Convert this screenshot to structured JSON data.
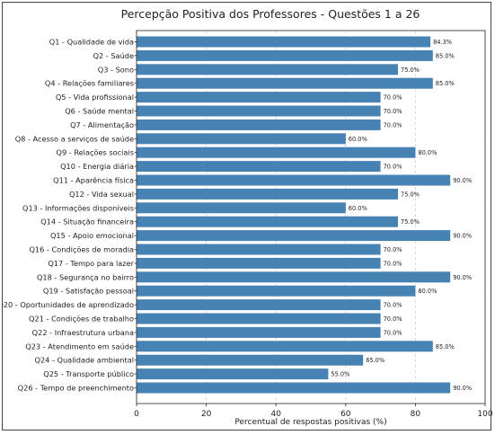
{
  "chart_data": {
    "type": "bar",
    "orientation": "horizontal",
    "title": "Percepção Positiva dos Professores - Questões 1 a 26",
    "xlabel": "Percentual de respostas positivas (%)",
    "ylabel": "",
    "xlim": [
      0,
      100
    ],
    "xticks": [
      0,
      20,
      40,
      60,
      80,
      100
    ],
    "grid": "vertical dashed",
    "bar_color": "#4682b4",
    "categories": [
      "Q1 - Qualidade de vida",
      "Q2 - Saúde",
      "Q3 - Sono",
      "Q4 - Relações familiares",
      "Q5 - Vida profissional",
      "Q6 - Saúde mental",
      "Q7 - Alimentação",
      "Q8 - Acesso a serviços de saúde",
      "Q9 - Relações sociais",
      "Q10 - Energia diária",
      "Q11 - Aparência física",
      "Q12 - Vida sexual",
      "Q13 - Informações disponíveis",
      "Q14 - Situação financeira",
      "Q15 - Apoio emocional",
      "Q16 - Condições de moradia",
      "Q17 - Tempo para lazer",
      "Q18 - Segurança no bairro",
      "Q19 - Satisfação pessoal",
      "Q20 - Oportunidades de aprendizado",
      "Q21 - Condições de trabalho",
      "Q22 - Infraestrutura urbana",
      "Q23 - Atendimento em saúde",
      "Q24 - Qualidade ambiental",
      "Q25 - Transporte público",
      "Q26 - Tempo de preenchimento"
    ],
    "values": [
      84.3,
      85.0,
      75.0,
      85.0,
      70.0,
      70.0,
      70.0,
      60.0,
      80.0,
      70.0,
      90.0,
      75.0,
      60.0,
      75.0,
      90.0,
      70.0,
      70.0,
      90.0,
      80.0,
      70.0,
      70.0,
      70.0,
      85.0,
      65.0,
      55.0,
      90.0
    ],
    "value_labels": [
      "84.3%",
      "85.0%",
      "75.0%",
      "85.0%",
      "70.0%",
      "70.0%",
      "70.0%",
      "60.0%",
      "80.0%",
      "70.0%",
      "90.0%",
      "75.0%",
      "60.0%",
      "75.0%",
      "90.0%",
      "70.0%",
      "70.0%",
      "90.0%",
      "80.0%",
      "70.0%",
      "70.0%",
      "70.0%",
      "85.0%",
      "65.0%",
      "55.0%",
      "90.0%"
    ]
  }
}
